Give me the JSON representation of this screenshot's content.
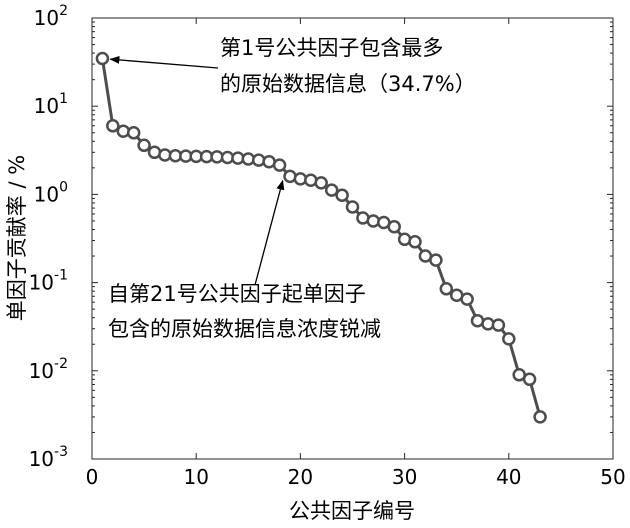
{
  "chart_data": {
    "type": "line",
    "xlabel": "公共因子编号",
    "ylabel": "单因子贡献率 / %",
    "xlim": [
      0,
      50
    ],
    "ylim": [
      0.001,
      100
    ],
    "yscale": "log",
    "xticks": [
      "0",
      "10",
      "20",
      "30",
      "40",
      "50"
    ],
    "yticks": [
      {
        "base": "10",
        "exp": "2"
      },
      {
        "base": "10",
        "exp": "1"
      },
      {
        "base": "10",
        "exp": "0"
      },
      {
        "base": "10",
        "exp": "-1"
      },
      {
        "base": "10",
        "exp": "-2"
      },
      {
        "base": "10",
        "exp": "-3"
      }
    ],
    "grid": false,
    "series_color": "#4d4d4d",
    "x": [
      1,
      2,
      3,
      4,
      5,
      6,
      7,
      8,
      9,
      10,
      11,
      12,
      13,
      14,
      15,
      16,
      17,
      18,
      19,
      20,
      21,
      22,
      23,
      24,
      25,
      26,
      27,
      28,
      29,
      30,
      31,
      32,
      33,
      34,
      35,
      36,
      37,
      38,
      39,
      40,
      41,
      42,
      43
    ],
    "values": [
      34.7,
      6.0,
      5.2,
      5.0,
      3.6,
      3.0,
      2.8,
      2.75,
      2.72,
      2.7,
      2.68,
      2.66,
      2.62,
      2.58,
      2.52,
      2.45,
      2.35,
      2.15,
      1.6,
      1.5,
      1.45,
      1.35,
      1.12,
      0.98,
      0.72,
      0.54,
      0.5,
      0.48,
      0.43,
      0.31,
      0.29,
      0.2,
      0.18,
      0.085,
      0.072,
      0.065,
      0.037,
      0.034,
      0.033,
      0.023,
      0.009,
      0.008,
      0.003
    ],
    "annotations": [
      {
        "lines": [
          "第1号公共因子包含最多",
          "的原始数据信息（34.7%）"
        ],
        "target_x": 1,
        "target_y": 34.7
      },
      {
        "lines": [
          "自第21号公共因子起单因子",
          "包含的原始数据信息浓度锐减"
        ],
        "target_x": 18.5,
        "target_y": 1.75
      }
    ]
  }
}
